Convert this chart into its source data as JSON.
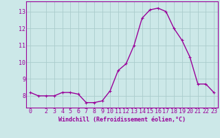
{
  "x": [
    0,
    1,
    2,
    3,
    4,
    5,
    6,
    7,
    8,
    9,
    10,
    11,
    12,
    13,
    14,
    15,
    16,
    17,
    18,
    19,
    20,
    21,
    22,
    23
  ],
  "y": [
    8.2,
    8.0,
    8.0,
    8.0,
    8.2,
    8.2,
    8.1,
    7.6,
    7.6,
    7.7,
    8.3,
    9.5,
    9.9,
    11.0,
    12.6,
    13.1,
    13.2,
    13.0,
    12.0,
    11.3,
    10.3,
    8.7,
    8.7,
    8.2
  ],
  "line_color": "#990099",
  "marker": "+",
  "marker_size": 3,
  "linewidth": 1.0,
  "bg_color": "#cce8e8",
  "grid_color": "#aacccc",
  "tick_color": "#990099",
  "label_color": "#990099",
  "xlabel": "Windchill (Refroidissement éolien,°C)",
  "xlabel_fontsize": 6,
  "ylabel_ticks": [
    8,
    9,
    10,
    11,
    12,
    13
  ],
  "xlim": [
    -0.5,
    23.5
  ],
  "ylim": [
    7.3,
    13.6
  ],
  "tick_fontsize": 6,
  "xticks": [
    0,
    2,
    3,
    4,
    5,
    6,
    7,
    8,
    9,
    10,
    11,
    12,
    13,
    14,
    15,
    16,
    17,
    18,
    19,
    20,
    21,
    22,
    23
  ]
}
